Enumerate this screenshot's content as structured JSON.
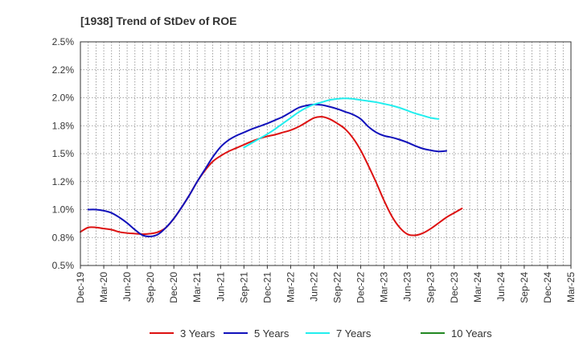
{
  "chart_data": {
    "type": "line",
    "title": "[1938]  Trend of StDev of ROE",
    "xlabel": "",
    "ylabel": "",
    "x_tick_labels": [
      "Dec-19",
      "Mar-20",
      "Jun-20",
      "Sep-20",
      "Dec-20",
      "Mar-21",
      "Jun-21",
      "Sep-21",
      "Dec-21",
      "Mar-22",
      "Jun-22",
      "Sep-22",
      "Dec-22",
      "Mar-23",
      "Jun-23",
      "Sep-23",
      "Dec-23",
      "Mar-24",
      "Jun-24",
      "Sep-24",
      "Dec-24",
      "Mar-25"
    ],
    "y_tick_labels": [
      "0.5%",
      "0.8%",
      "1.0%",
      "1.2%",
      "1.5%",
      "1.8%",
      "2.0%",
      "2.2%",
      "2.5%"
    ],
    "ylim": [
      0.5,
      2.5
    ],
    "y_ticks": [
      0.5,
      0.75,
      1.0,
      1.25,
      1.5,
      1.75,
      2.0,
      2.25,
      2.5
    ],
    "grid": true,
    "legend_position": "bottom",
    "series": [
      {
        "name": "3 Years",
        "color": "#dd1111",
        "start_index": 0,
        "values": [
          0.8,
          0.84,
          0.84,
          0.83,
          0.82,
          0.8,
          0.79,
          0.785,
          0.78,
          0.785,
          0.8,
          0.84,
          0.92,
          1.02,
          1.13,
          1.25,
          1.35,
          1.43,
          1.48,
          1.52,
          1.55,
          1.58,
          1.61,
          1.635,
          1.655,
          1.67,
          1.69,
          1.71,
          1.74,
          1.78,
          1.82,
          1.83,
          1.81,
          1.77,
          1.72,
          1.64,
          1.53,
          1.39,
          1.24,
          1.08,
          0.94,
          0.84,
          0.78,
          0.77,
          0.79,
          0.83,
          0.88,
          0.93,
          0.97,
          1.01
        ]
      },
      {
        "name": "5 Years",
        "color": "#1111bb",
        "start_index": 1,
        "values": [
          1.0,
          1.0,
          0.99,
          0.97,
          0.93,
          0.88,
          0.82,
          0.77,
          0.76,
          0.78,
          0.84,
          0.92,
          1.02,
          1.13,
          1.25,
          1.36,
          1.47,
          1.56,
          1.62,
          1.66,
          1.69,
          1.72,
          1.745,
          1.77,
          1.8,
          1.83,
          1.87,
          1.91,
          1.93,
          1.94,
          1.935,
          1.92,
          1.9,
          1.875,
          1.85,
          1.81,
          1.74,
          1.69,
          1.66,
          1.645,
          1.625,
          1.6,
          1.57,
          1.545,
          1.53,
          1.52,
          1.525
        ]
      },
      {
        "name": "7 Years",
        "color": "#22eeee",
        "start_index": 21,
        "values": [
          1.555,
          1.595,
          1.635,
          1.675,
          1.72,
          1.77,
          1.82,
          1.87,
          1.91,
          1.94,
          1.96,
          1.98,
          1.99,
          1.995,
          1.99,
          1.98,
          1.97,
          1.96,
          1.945,
          1.93,
          1.91,
          1.885,
          1.86,
          1.84,
          1.82,
          1.81
        ]
      },
      {
        "name": "10 Years",
        "color": "#228822",
        "start_index": 0,
        "values": []
      }
    ]
  }
}
